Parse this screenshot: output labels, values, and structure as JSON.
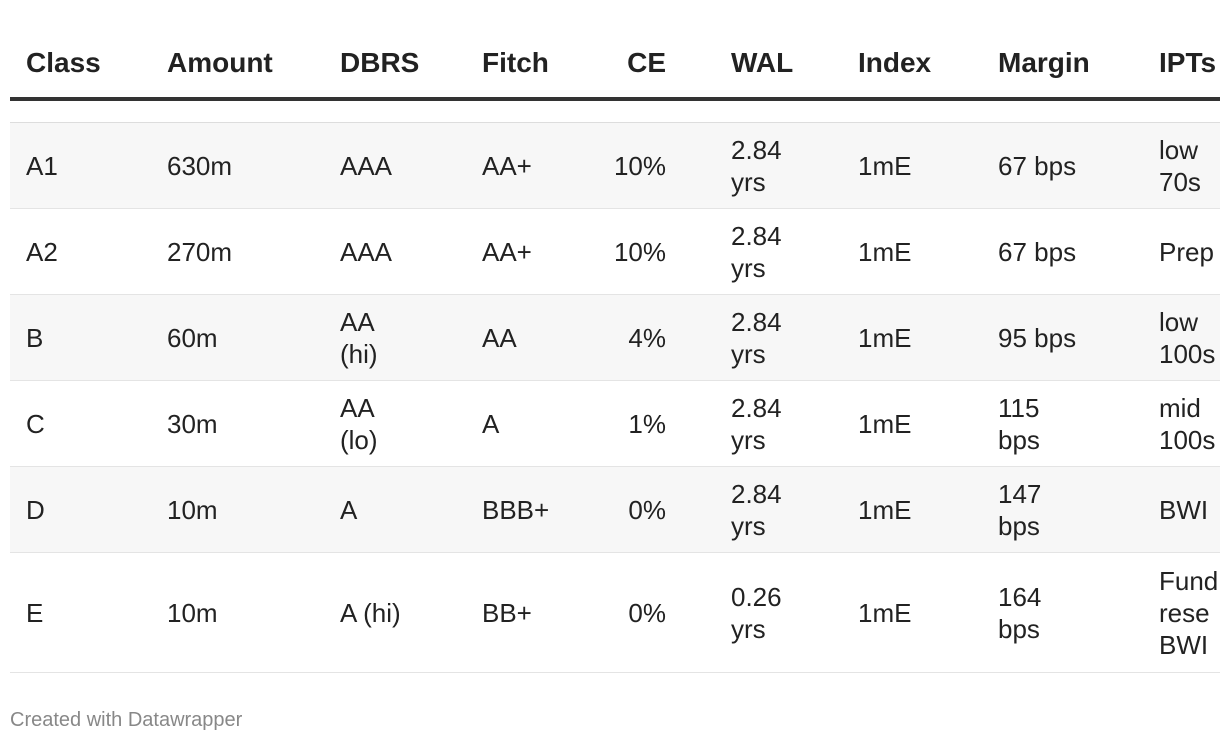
{
  "table": {
    "columns": [
      "Class",
      "Amount",
      "DBRS",
      "Fitch",
      "CE",
      "WAL",
      "Index",
      "Margin",
      "IPTs"
    ],
    "rows": [
      [
        "A1",
        "630m",
        "AAA",
        "AA+",
        "10%",
        "2.84 yrs",
        "1mE",
        "67 bps",
        "low 70s"
      ],
      [
        "A2",
        "270m",
        "AAA",
        "AA+",
        "10%",
        "2.84 yrs",
        "1mE",
        "67 bps",
        "Prep"
      ],
      [
        "B",
        "60m",
        "AA (hi)",
        "AA",
        "4%",
        "2.84 yrs",
        "1mE",
        "95 bps",
        "low 100s"
      ],
      [
        "C",
        "30m",
        "AA (lo)",
        "A",
        "1%",
        "2.84 yrs",
        "1mE",
        "115 bps",
        "mid 100s"
      ],
      [
        "D",
        "10m",
        "A",
        "BBB+",
        "0%",
        "2.84 yrs",
        "1mE",
        "147 bps",
        "BWI"
      ],
      [
        "E",
        "10m",
        "A (hi)",
        "BB+",
        "0%",
        "0.26 yrs",
        "1mE",
        "164 bps",
        "Fund rese BWI"
      ]
    ]
  },
  "footer": "Created with Datawrapper"
}
